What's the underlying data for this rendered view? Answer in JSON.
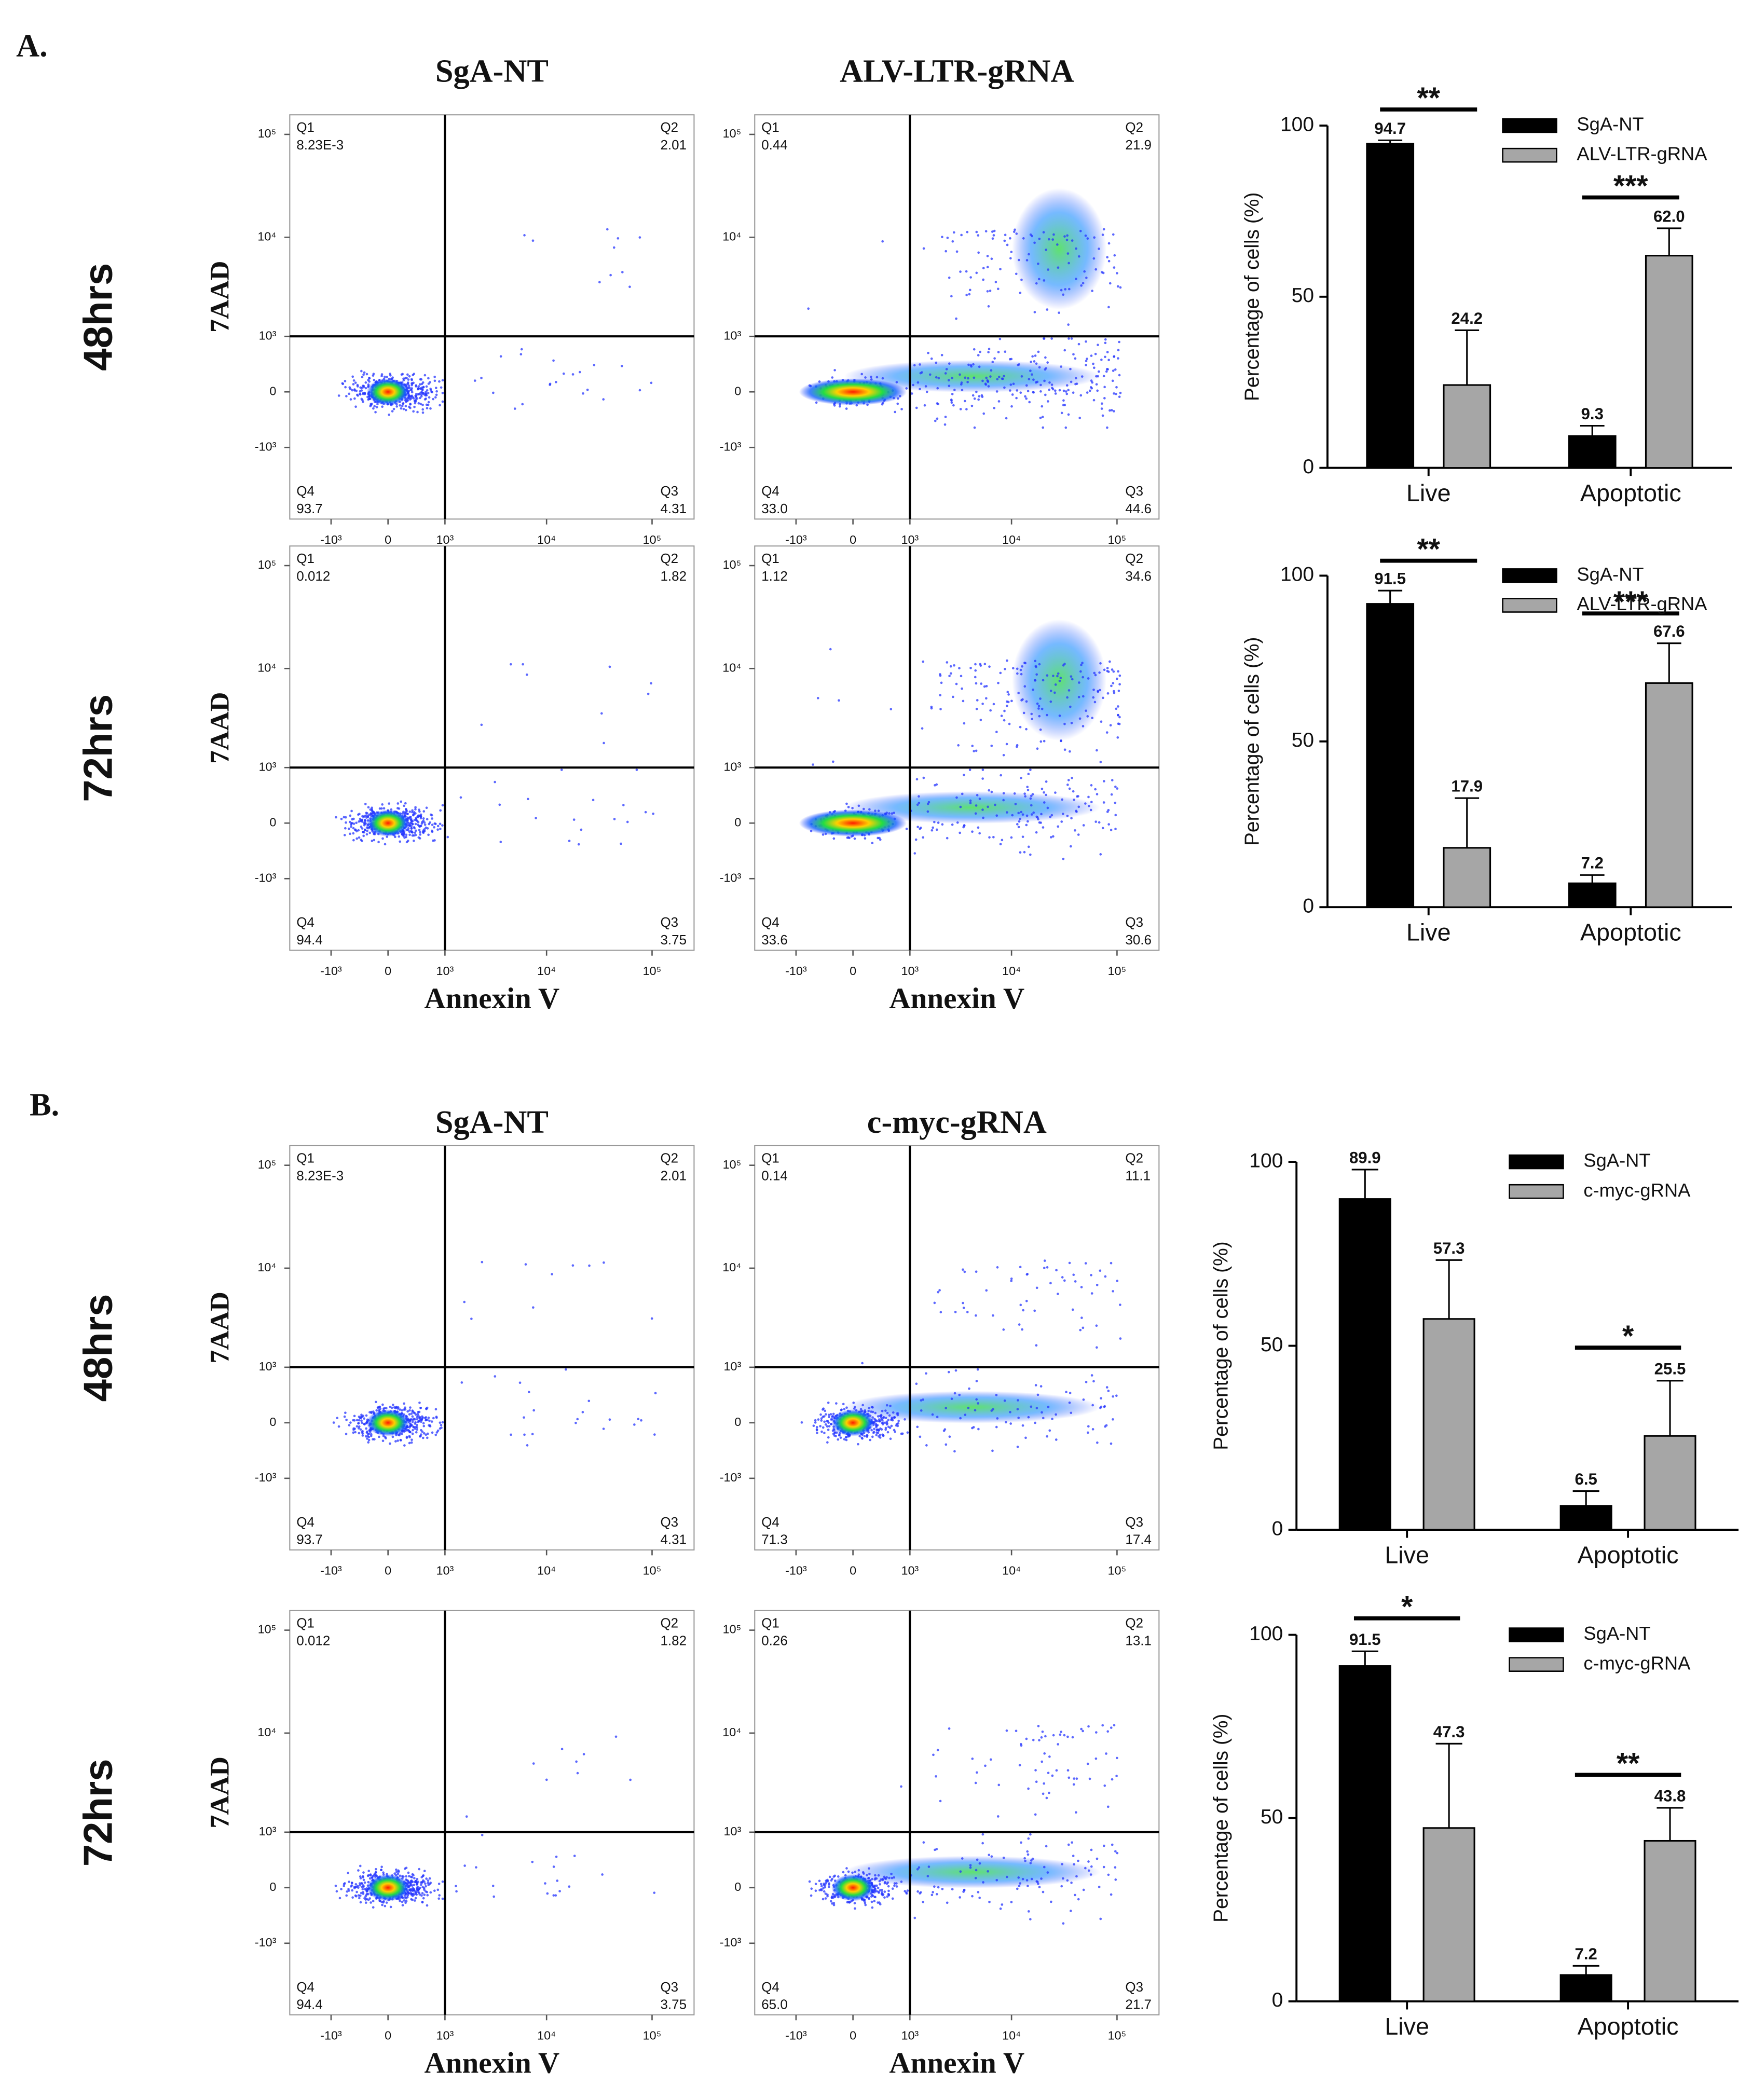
{
  "panels": [
    {
      "label": "A.",
      "columns": [
        "SgA-NT",
        "ALV-LTR-gRNA"
      ],
      "rows": [
        {
          "label": "48hrs"
        },
        {
          "label": "72hrs"
        }
      ]
    },
    {
      "label": "B.",
      "columns": [
        "SgA-NT",
        "c-myc-gRNA"
      ],
      "rows": [
        {
          "label": "48hrs"
        },
        {
          "label": "72hrs"
        }
      ]
    }
  ],
  "flow_axes": {
    "xlabel": "Annexin V",
    "ylabel": "7AAD",
    "xlim": [
      -2650,
      250000
    ],
    "ylim": [
      -5400,
      155000
    ],
    "ticks": [
      {
        "value": -1000,
        "label": "-10³"
      },
      0,
      {
        "value": 1000,
        "label": "10³"
      },
      {
        "value": 10000,
        "label": "10⁴"
      },
      {
        "value": 100000,
        "label": "10⁵"
      }
    ]
  },
  "flow_plots": [
    {
      "quadrants": [
        {
          "name": "Q1",
          "value": {
            "value": 0.00823,
            "label": "8.23E-3"
          }
        },
        {
          "name": "Q2",
          "value": 2.01
        },
        {
          "name": "Q3",
          "value": 4.31
        },
        {
          "name": "Q4",
          "value": 93.7
        }
      ]
    },
    {
      "quadrants": [
        {
          "name": "Q1",
          "value": 0.44
        },
        {
          "name": "Q2",
          "value": 21.9
        },
        {
          "name": "Q3",
          "value": 44.6
        },
        {
          "name": "Q4",
          "value": {
            "value": 33,
            "label": "33.0"
          }
        }
      ]
    },
    {
      "quadrants": [
        {
          "name": "Q1",
          "value": 0.012
        },
        {
          "name": "Q2",
          "value": 1.82
        },
        {
          "name": "Q3",
          "value": 3.75
        },
        {
          "name": "Q4",
          "value": 94.4
        }
      ]
    },
    {
      "quadrants": [
        {
          "name": "Q1",
          "value": 1.12
        },
        {
          "name": "Q2",
          "value": 34.6
        },
        {
          "name": "Q3",
          "value": 30.6
        },
        {
          "name": "Q4",
          "value": 33.6
        }
      ]
    },
    {
      "quadrants": [
        {
          "name": "Q1",
          "value": {
            "value": 0.00823,
            "label": "8.23E-3"
          }
        },
        {
          "name": "Q2",
          "value": 2.01
        },
        {
          "name": "Q3",
          "value": 4.31
        },
        {
          "name": "Q4",
          "value": 93.7
        }
      ]
    },
    {
      "quadrants": [
        {
          "name": "Q1",
          "value": 0.14
        },
        {
          "name": "Q2",
          "value": 11.1
        },
        {
          "name": "Q3",
          "value": 17.4
        },
        {
          "name": "Q4",
          "value": 71.3
        }
      ]
    },
    {
      "quadrants": [
        {
          "name": "Q1",
          "value": 0.012
        },
        {
          "name": "Q2",
          "value": 1.82
        },
        {
          "name": "Q3",
          "value": 3.75
        },
        {
          "name": "Q4",
          "value": 94.4
        }
      ]
    },
    {
      "quadrants": [
        {
          "name": "Q1",
          "value": 0.26
        },
        {
          "name": "Q2",
          "value": 13.1
        },
        {
          "name": "Q3",
          "value": 21.7
        },
        {
          "name": "Q4",
          "value": {
            "value": 65,
            "label": "65.0"
          }
        }
      ]
    }
  ],
  "chart_data": [
    {
      "type": "bar",
      "ylabel": "Percentage of cells (%)",
      "categories": [
        "Live",
        "Apoptotic"
      ],
      "ylim": [
        0,
        100
      ],
      "yticks": [
        0,
        50,
        100
      ],
      "legend": "upper right",
      "series": [
        {
          "name": "SgA-NT",
          "color": "#000000",
          "values": [
            94.7,
            9.3
          ],
          "errors": [
            1,
            3
          ]
        },
        {
          "name": "ALV-LTR-gRNA",
          "color": "#a6a6a6",
          "values": [
            24.2,
            62
          ],
          "value_labels": [
            "24.2",
            "62.0"
          ],
          "errors": [
            16,
            8
          ]
        }
      ],
      "significance": [
        "**",
        "***"
      ]
    },
    {
      "type": "bar",
      "ylabel": "Percentage of cells (%)",
      "categories": [
        "Live",
        "Apoptotic"
      ],
      "ylim": [
        0,
        100
      ],
      "yticks": [
        0,
        50,
        100
      ],
      "legend": "upper right",
      "series": [
        {
          "name": "SgA-NT",
          "color": "#000000",
          "values": [
            91.5,
            7.2
          ],
          "errors": [
            4,
            2.5
          ]
        },
        {
          "name": "ALV-LTR-gRNA",
          "color": "#a6a6a6",
          "values": [
            17.9,
            67.6
          ],
          "errors": [
            15,
            12
          ]
        }
      ],
      "significance": [
        "**",
        "***"
      ]
    },
    {
      "type": "bar",
      "ylabel": "Percentage of cells (%)",
      "categories": [
        "Live",
        "Apoptotic"
      ],
      "ylim": [
        0,
        100
      ],
      "yticks": [
        0,
        50,
        100
      ],
      "legend": "upper right",
      "series": [
        {
          "name": "SgA-NT",
          "color": "#000000",
          "values": [
            89.9,
            6.5
          ],
          "errors": [
            8,
            4
          ]
        },
        {
          "name": "c-myc-gRNA",
          "color": "#a6a6a6",
          "values": [
            57.3,
            25.5
          ],
          "errors": [
            16,
            15
          ]
        }
      ],
      "significance": [
        null,
        "*"
      ]
    },
    {
      "type": "bar",
      "ylabel": "Percentage of cells (%)",
      "categories": [
        "Live",
        "Apoptotic"
      ],
      "ylim": [
        0,
        100
      ],
      "yticks": [
        0,
        50,
        100
      ],
      "legend": "upper right",
      "series": [
        {
          "name": "SgA-NT",
          "color": "#000000",
          "values": [
            91.5,
            7.2
          ],
          "errors": [
            4,
            2.5
          ]
        },
        {
          "name": "c-myc-gRNA",
          "color": "#a6a6a6",
          "values": [
            47.3,
            43.8
          ],
          "errors": [
            23,
            9
          ]
        }
      ],
      "significance": [
        "*",
        "**"
      ]
    }
  ]
}
